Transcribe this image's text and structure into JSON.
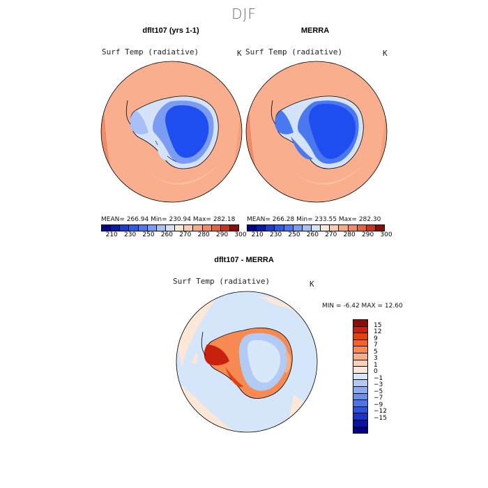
{
  "season": "DJF",
  "panels": {
    "model": {
      "title": "dflt107 (yrs 1-1)",
      "variable": "Surf Temp (radiative)",
      "unit": "K",
      "stats": "MEAN= 266.94   Min= 230.94   Max= 282.18"
    },
    "obs": {
      "title": "MERRA",
      "variable": "Surf Temp (radiative)",
      "unit": "K",
      "stats": "MEAN= 266.28   Min= 233.55   Max= 282.30"
    },
    "diff": {
      "title": "dflt107 - MERRA",
      "variable": "Surf Temp (radiative)",
      "unit": "K",
      "stats": "MIN =   -6.42  MAX =   12.60"
    }
  },
  "abs_colorbar": {
    "colors": [
      "#00008c",
      "#0a1aa8",
      "#1a3ccc",
      "#2a5ae6",
      "#4a78f0",
      "#7a9cf2",
      "#a8c0f5",
      "#d4e2fa",
      "#ffe7d5",
      "#fccbb0",
      "#f8aa88",
      "#f08a66",
      "#e8623e",
      "#c8341c",
      "#8c0c08"
    ],
    "tick_labels": [
      "210",
      "230",
      "250",
      "260",
      "270",
      "280",
      "290",
      "300"
    ]
  },
  "diff_colorbar": {
    "colors": [
      "#8c0c08",
      "#c8220e",
      "#e6400f",
      "#f46224",
      "#f78a52",
      "#f9ae86",
      "#fbd0b4",
      "#fde8da",
      "#d8e8fa",
      "#b2cbf5",
      "#8cacf0",
      "#6a90ec",
      "#4a74e8",
      "#2a54dc",
      "#1a34c4",
      "#0a12a0",
      "#00008c"
    ],
    "tick_labels": [
      "15",
      "12",
      "9",
      "7",
      "5",
      "3",
      "1",
      "0",
      "−1",
      "−3",
      "−5",
      "−7",
      "−9",
      "−12",
      "−15"
    ]
  },
  "colors": {
    "ocean_warm": "#f9ae8e",
    "ocean_edge": "#f08a68",
    "land_cold": "#1f4ef0",
    "land_mid": "#3c6cf4",
    "coast_cool": "#8aaef3",
    "diff_bg": "#fde7d6",
    "diff_cool": "#d6e6fa",
    "diff_hot": "#d03010"
  }
}
